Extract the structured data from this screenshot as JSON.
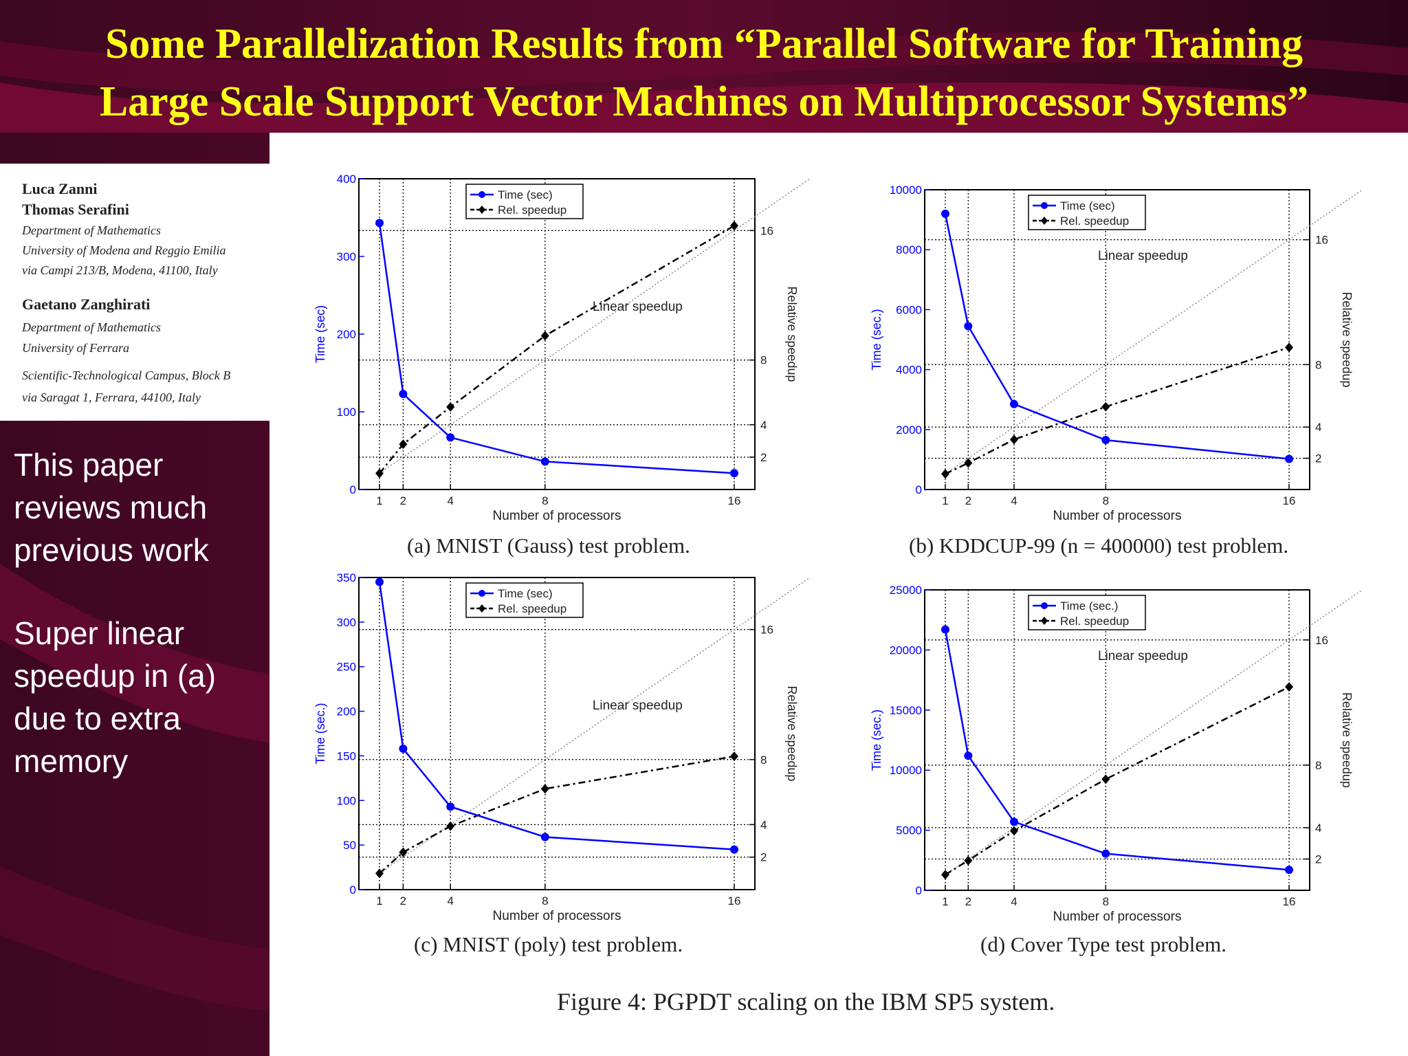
{
  "slide": {
    "title_line1": "Some Parallelization Results from “Parallel Software for Training",
    "title_line2": "Large Scale Support Vector Machines on Multiprocessor Systems”",
    "colors": {
      "title": "#ffff1a",
      "background": "#2a0616",
      "accent": "#7a0a36"
    }
  },
  "authors": [
    {
      "name": "Luca Zanni"
    },
    {
      "name": "Thomas Serafini"
    },
    {
      "affiliation": "Department of Mathematics"
    },
    {
      "affiliation": "University of Modena and Reggio Emilia"
    },
    {
      "affiliation": "via Campi 213/B, Modena, 41100, Italy"
    },
    {
      "name": "Gaetano Zanghirati"
    },
    {
      "affiliation": "Department of Mathematics"
    },
    {
      "affiliation": "University of Ferrara"
    },
    {
      "affiliation": "Scientific-Technological Campus, Block B"
    },
    {
      "affiliation": "via Saragat 1, Ferrara, 44100, Italy"
    }
  ],
  "notes": {
    "line1": "This paper",
    "line2": "reviews much",
    "line3": "previous work",
    "line4": "Super linear",
    "line5": "speedup in (a)",
    "line6": "due to extra",
    "line7": "memory"
  },
  "figure_caption": "Figure 4: PGPDT scaling on the IBM SP5 system.",
  "chart_data": [
    {
      "type": "line",
      "caption": "(a) MNIST (Gauss) test problem.",
      "xlabel": "Number of processors",
      "ylabel": "Time (sec)",
      "y2label": "Relative speedup",
      "x": [
        1,
        2,
        4,
        8,
        16
      ],
      "xticks": [
        1,
        2,
        4,
        8,
        16
      ],
      "ylim": [
        0,
        400
      ],
      "yticks": [
        0,
        100,
        200,
        300,
        400
      ],
      "y2lim": [
        0,
        19.2
      ],
      "y2ticks": [
        2,
        4,
        8,
        16
      ],
      "legend_time": "Time (sec)",
      "legend_speedup": "Rel. speedup",
      "legend_placement": "top-center",
      "annotation": "Linear speedup",
      "series": [
        {
          "name": "Time (sec)",
          "axis": "left",
          "color": "#0000ff",
          "values": [
            343,
            123,
            67,
            36,
            21
          ]
        },
        {
          "name": "Rel. speedup",
          "axis": "right",
          "color": "#000000",
          "values": [
            1,
            2.8,
            5.1,
            9.5,
            16.3
          ]
        }
      ],
      "grid": true
    },
    {
      "type": "line",
      "caption": "(b) KDDCUP-99 (n = 400000) test problem.",
      "xlabel": "Number of processors",
      "ylabel": "Time (sec.)",
      "y2label": "Relative speedup",
      "x": [
        1,
        2,
        4,
        8,
        16
      ],
      "xticks": [
        1,
        2,
        4,
        8,
        16
      ],
      "ylim": [
        0,
        10000
      ],
      "yticks": [
        0,
        2000,
        4000,
        6000,
        8000,
        10000
      ],
      "y2lim": [
        0,
        19.2
      ],
      "y2ticks": [
        2,
        4,
        8,
        16
      ],
      "legend_time": "Time (sec)",
      "legend_speedup": "Rel. speedup",
      "legend_placement": "top-center",
      "annotation": "Linear speedup",
      "series": [
        {
          "name": "Time (sec)",
          "axis": "left",
          "color": "#0000ff",
          "values": [
            9200,
            5450,
            2850,
            1650,
            1020
          ]
        },
        {
          "name": "Rel. speedup",
          "axis": "right",
          "color": "#000000",
          "values": [
            1,
            1.7,
            3.2,
            5.3,
            9.1
          ]
        }
      ],
      "grid": true
    },
    {
      "type": "line",
      "caption": "(c) MNIST (poly) test problem.",
      "xlabel": "Number of processors",
      "ylabel": "Time (sec.)",
      "y2label": "Relative speedup",
      "x": [
        1,
        2,
        4,
        8,
        16
      ],
      "xticks": [
        1,
        2,
        4,
        8,
        16
      ],
      "ylim": [
        0,
        350
      ],
      "yticks": [
        0,
        50,
        100,
        150,
        200,
        250,
        300,
        350
      ],
      "y2lim": [
        0,
        19.2
      ],
      "y2ticks": [
        2,
        4,
        8,
        16
      ],
      "legend_time": "Time (sec)",
      "legend_speedup": "Rel. speedup",
      "legend_placement": "top-center",
      "annotation": "Linear speedup",
      "series": [
        {
          "name": "Time (sec)",
          "axis": "left",
          "color": "#0000ff",
          "values": [
            345,
            158,
            93,
            59,
            45
          ]
        },
        {
          "name": "Rel. speedup",
          "axis": "right",
          "color": "#000000",
          "values": [
            1,
            2.3,
            3.9,
            6.2,
            8.2
          ]
        }
      ],
      "grid": true
    },
    {
      "type": "line",
      "caption": "(d) Cover Type test problem.",
      "xlabel": "Number of processors",
      "ylabel": "Time (sec.)",
      "y2label": "Relative speedup",
      "x": [
        1,
        2,
        4,
        8,
        16
      ],
      "xticks": [
        1,
        2,
        4,
        8,
        16
      ],
      "ylim": [
        0,
        25000
      ],
      "yticks": [
        0,
        5000,
        10000,
        15000,
        20000,
        25000
      ],
      "y2lim": [
        0,
        19.2
      ],
      "y2ticks": [
        2,
        4,
        8,
        16
      ],
      "legend_time": "Time (sec.)",
      "legend_speedup": "Rel. speedup",
      "legend_placement": "top-center",
      "annotation": "Linear speedup",
      "series": [
        {
          "name": "Time (sec.)",
          "axis": "left",
          "color": "#0000ff",
          "values": [
            21700,
            11200,
            5700,
            3050,
            1700
          ]
        },
        {
          "name": "Rel. speedup",
          "axis": "right",
          "color": "#000000",
          "values": [
            1,
            1.9,
            3.8,
            7.1,
            13
          ]
        }
      ],
      "grid": true
    }
  ]
}
